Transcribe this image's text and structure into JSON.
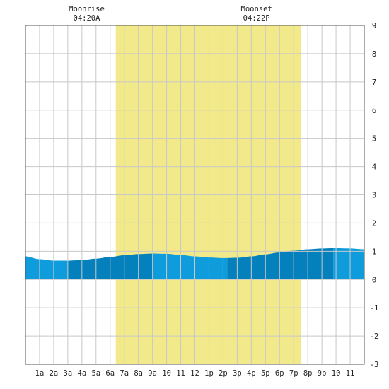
{
  "chart_data": {
    "type": "area",
    "title": "",
    "xlabel": "",
    "ylabel": "",
    "ylim": [
      -3,
      9
    ],
    "y_ticks": [
      "-3",
      "-2",
      "-1",
      "0",
      "1",
      "2",
      "3",
      "4",
      "5",
      "6",
      "7",
      "8",
      "9"
    ],
    "x_ticks": [
      "1a",
      "2a",
      "3a",
      "4a",
      "5a",
      "6a",
      "7a",
      "8a",
      "9a",
      "10",
      "11",
      "12",
      "1p",
      "2p",
      "3p",
      "4p",
      "5p",
      "6p",
      "7p",
      "8p",
      "9p",
      "10",
      "11"
    ],
    "x_range_hours": [
      0,
      24
    ],
    "grid": true,
    "moon_events": [
      {
        "label": "Moonrise",
        "time": "04:20A"
      },
      {
        "label": "Moonset",
        "time": "04:22P"
      }
    ],
    "daylight_hours": [
      6.4,
      19.5
    ],
    "tide_curve": [
      {
        "hour": 0,
        "height": 0.82
      },
      {
        "hour": 1,
        "height": 0.72
      },
      {
        "hour": 2,
        "height": 0.67
      },
      {
        "hour": 3,
        "height": 0.67
      },
      {
        "hour": 4,
        "height": 0.69
      },
      {
        "hour": 5,
        "height": 0.74
      },
      {
        "hour": 6,
        "height": 0.8
      },
      {
        "hour": 7,
        "height": 0.86
      },
      {
        "hour": 8,
        "height": 0.9
      },
      {
        "hour": 9,
        "height": 0.92
      },
      {
        "hour": 10,
        "height": 0.91
      },
      {
        "hour": 11,
        "height": 0.87
      },
      {
        "hour": 12,
        "height": 0.82
      },
      {
        "hour": 13,
        "height": 0.78
      },
      {
        "hour": 14,
        "height": 0.76
      },
      {
        "hour": 15,
        "height": 0.77
      },
      {
        "hour": 16,
        "height": 0.82
      },
      {
        "hour": 17,
        "height": 0.89
      },
      {
        "hour": 18,
        "height": 0.96
      },
      {
        "hour": 19,
        "height": 1.02
      },
      {
        "hour": 20,
        "height": 1.07
      },
      {
        "hour": 21,
        "height": 1.1
      },
      {
        "hour": 22,
        "height": 1.11
      },
      {
        "hour": 23,
        "height": 1.1
      },
      {
        "hour": 24,
        "height": 1.07
      }
    ],
    "tide_band_edges_hours": [
      0,
      3,
      9,
      14.3,
      21.8,
      24
    ],
    "colors": {
      "daylight": "#f2e98a",
      "band_light": "#0f9cdc",
      "band_dark": "#0480bc",
      "grid": "#c8c8c8",
      "axis": "#555555"
    }
  }
}
